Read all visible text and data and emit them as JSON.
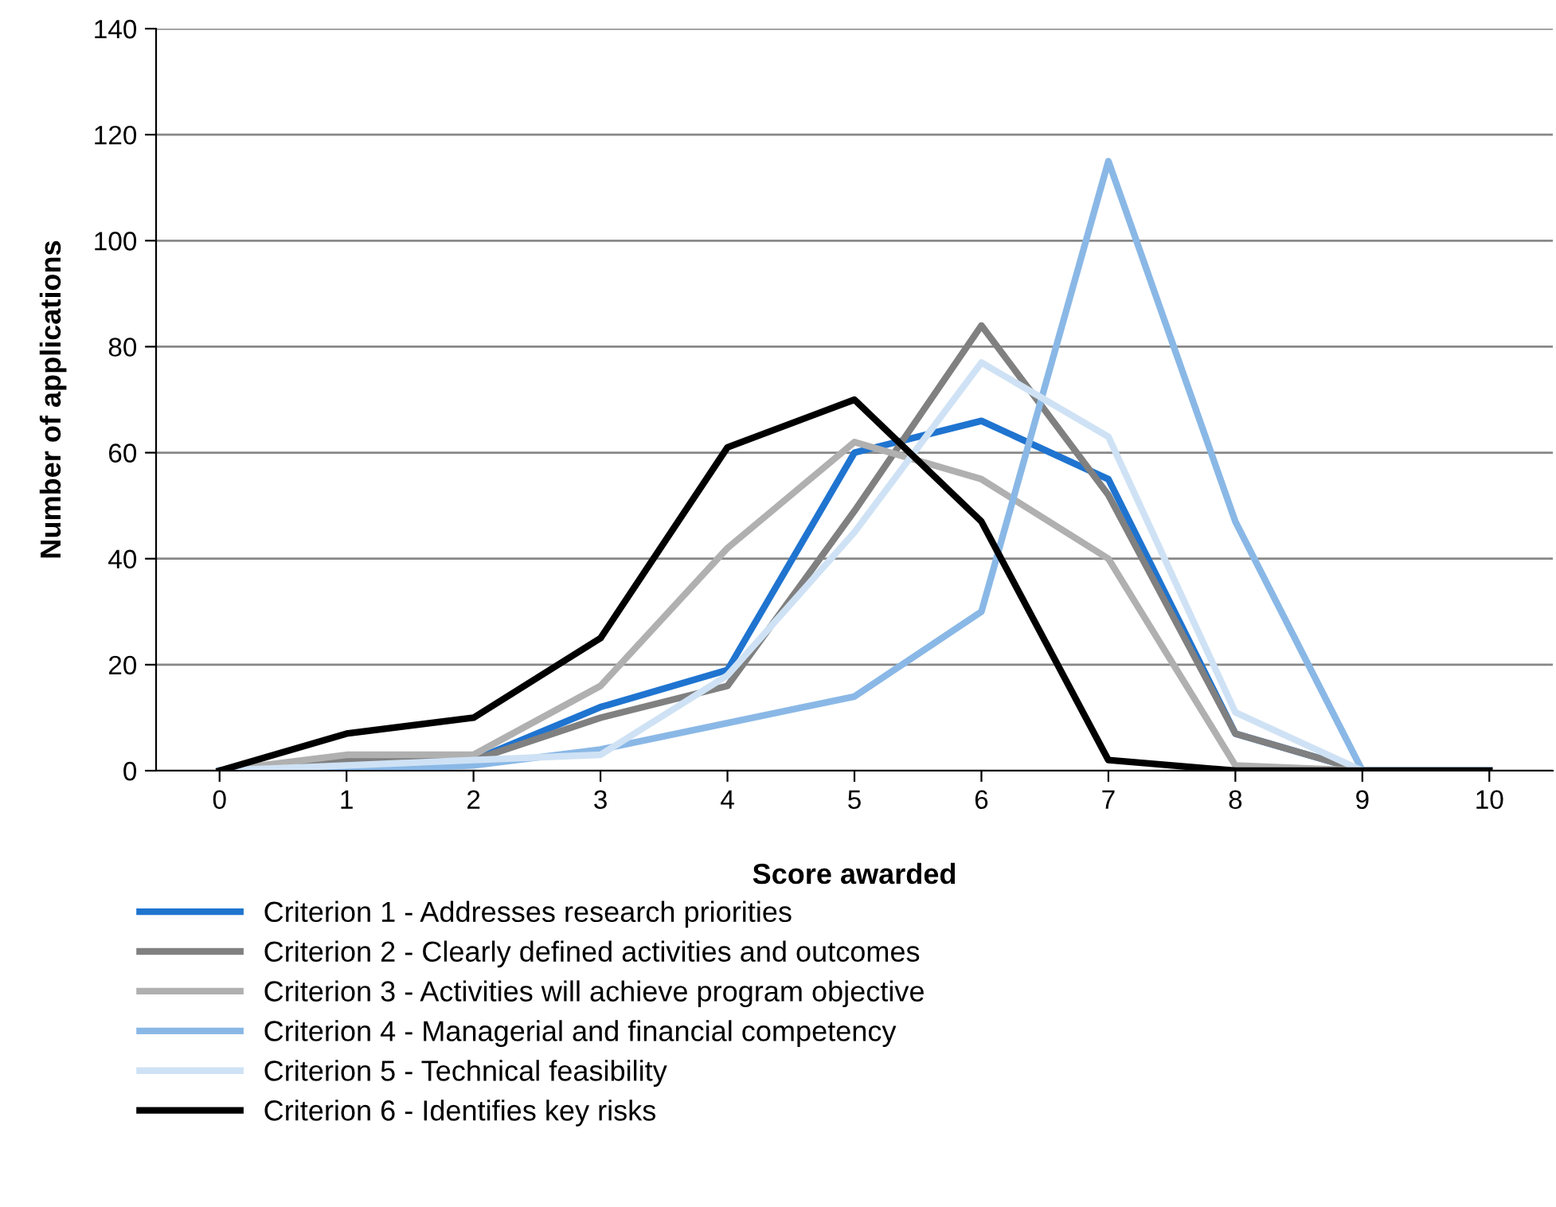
{
  "chart_data": {
    "type": "line",
    "xlabel": "Score awarded",
    "ylabel": "Number of applications",
    "categories": [
      "0",
      "1",
      "2",
      "3",
      "4",
      "5",
      "6",
      "7",
      "8",
      "9",
      "10"
    ],
    "ylim": [
      0,
      140
    ],
    "yticks": [
      0,
      20,
      40,
      60,
      80,
      100,
      120,
      140
    ],
    "grid": "y",
    "legend": "bottom left",
    "marker": "none",
    "line_style": "solid",
    "series": [
      {
        "name": "Criterion 1 - Addresses research priorities",
        "color": "#1f74d0",
        "values": [
          0,
          1,
          2,
          12,
          19,
          60,
          66,
          55,
          7,
          0,
          0
        ]
      },
      {
        "name": "Criterion 2 - Clearly defined activities and outcomes",
        "color": "#808080",
        "values": [
          0,
          2,
          2,
          10,
          16,
          49,
          84,
          52,
          7,
          0,
          0
        ]
      },
      {
        "name": "Criterion 3 - Activities will achieve program objective",
        "color": "#b0b0b0",
        "values": [
          0,
          3,
          3,
          16,
          42,
          62,
          55,
          40,
          1,
          0,
          0
        ]
      },
      {
        "name": "Criterion 4 - Managerial and financial competency",
        "color": "#8ab8e6",
        "values": [
          0,
          0,
          1,
          4,
          9,
          14,
          30,
          115,
          47,
          0,
          0
        ]
      },
      {
        "name": "Criterion 5 - Technical feasibility",
        "color": "#cfe2f5",
        "values": [
          0,
          1,
          2,
          3,
          18,
          45,
          77,
          63,
          11,
          0,
          0
        ]
      },
      {
        "name": "Criterion 6 - Identifies key risks",
        "color": "#000000",
        "values": [
          0,
          7,
          10,
          25,
          61,
          70,
          47,
          2,
          0,
          0,
          0
        ]
      }
    ]
  }
}
